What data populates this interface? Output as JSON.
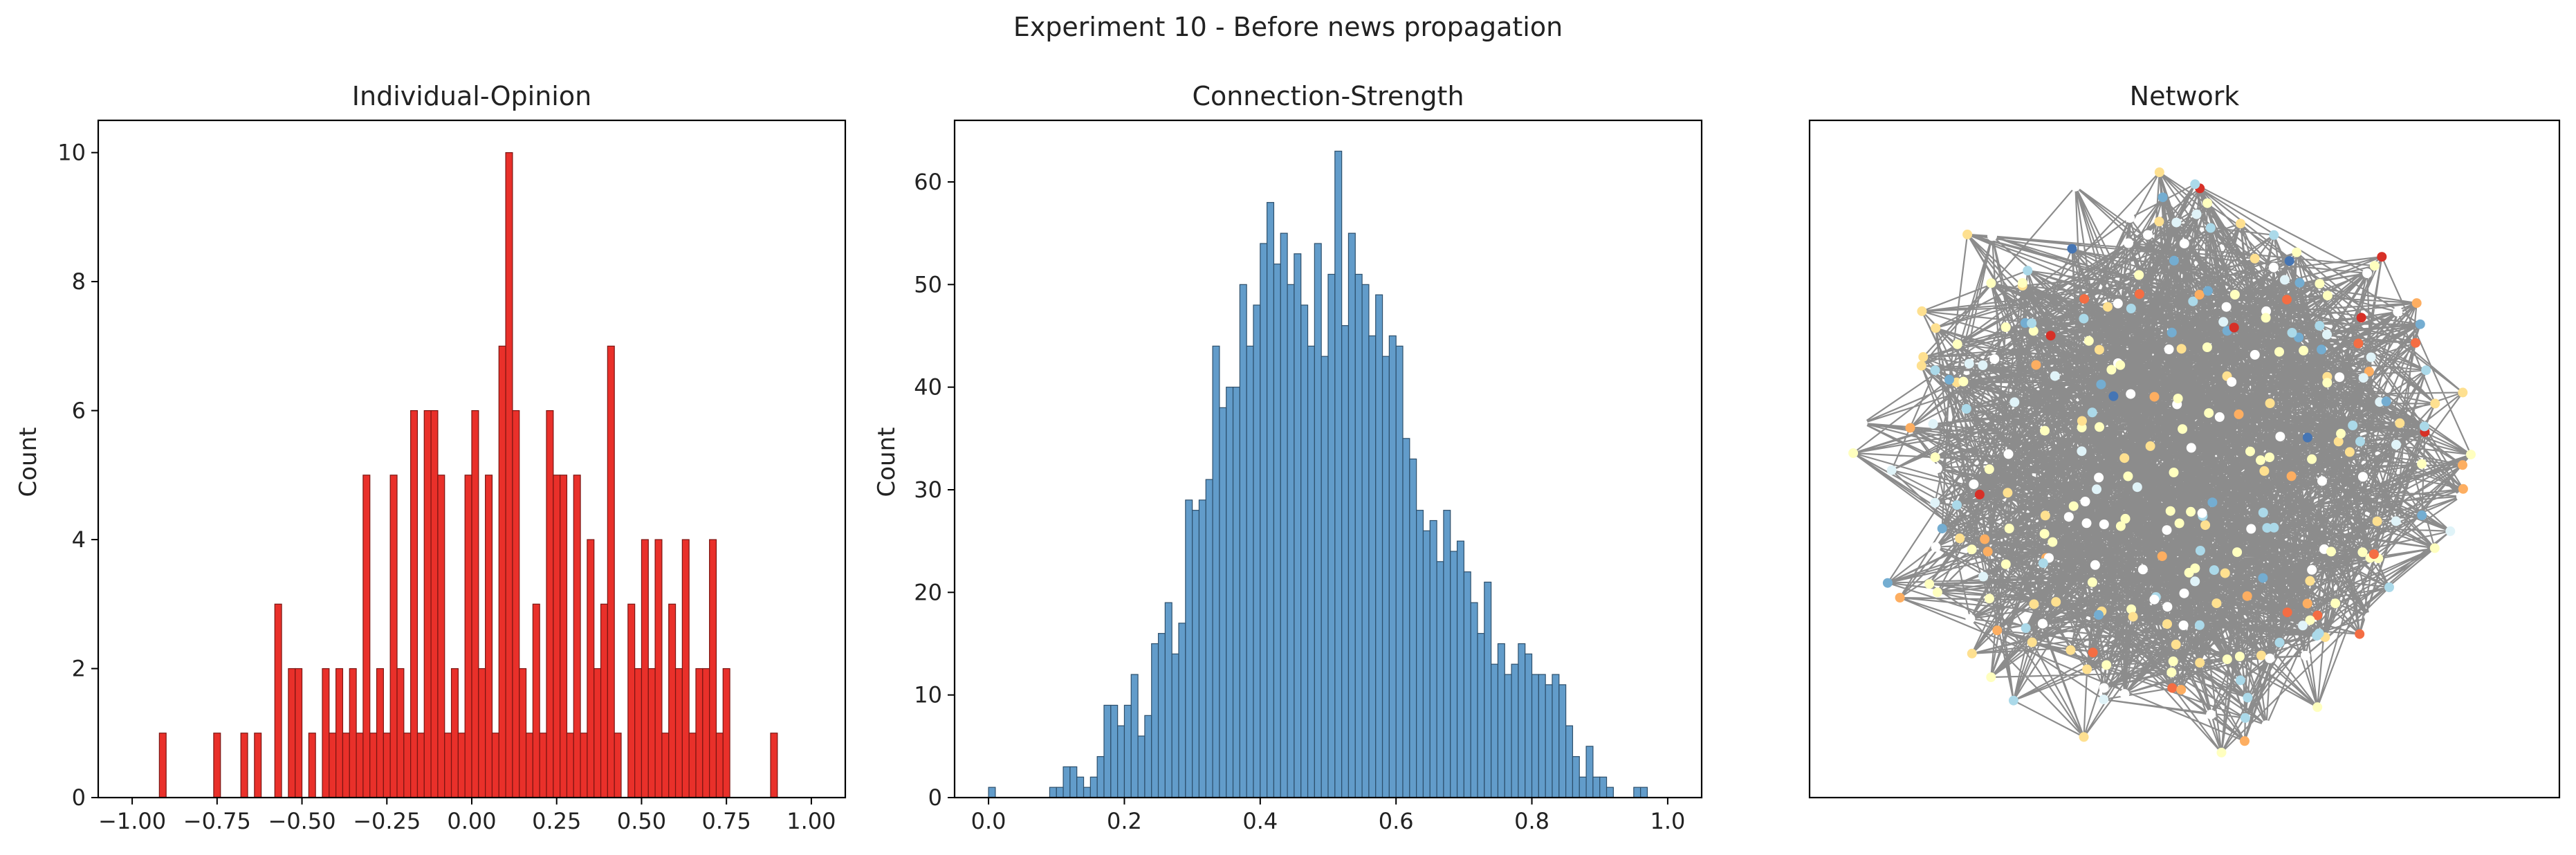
{
  "figure": {
    "suptitle": "Experiment 10 - Before news propagation"
  },
  "chart_data": [
    {
      "type": "bar",
      "title": "Individual-Opinion",
      "xlabel": "",
      "ylabel": "Count",
      "xlim": [
        -1.1,
        1.1
      ],
      "ylim": [
        0,
        10.5
      ],
      "xticks": [
        -1.0,
        -0.75,
        -0.5,
        -0.25,
        0.0,
        0.25,
        0.5,
        0.75,
        1.0
      ],
      "xtick_labels": [
        "−1.00",
        "−0.75",
        "−0.50",
        "−0.25",
        "0.00",
        "0.25",
        "0.50",
        "0.75",
        "1.00"
      ],
      "yticks": [
        0,
        2,
        4,
        6,
        8,
        10
      ],
      "ytick_labels": [
        "0",
        "2",
        "4",
        "6",
        "8",
        "10"
      ],
      "bin_start": -1.0,
      "bin_width": 0.02,
      "values": [
        0,
        0,
        0,
        0,
        1,
        0,
        0,
        0,
        0,
        0,
        0,
        0,
        1,
        0,
        0,
        0,
        1,
        0,
        1,
        0,
        0,
        3,
        0,
        2,
        2,
        0,
        1,
        0,
        2,
        1,
        2,
        1,
        2,
        1,
        5,
        1,
        2,
        1,
        5,
        2,
        1,
        6,
        1,
        6,
        6,
        5,
        1,
        2,
        1,
        5,
        6,
        2,
        5,
        1,
        7,
        10,
        6,
        2,
        1,
        3,
        1,
        6,
        5,
        5,
        1,
        5,
        1,
        4,
        2,
        3,
        7,
        1,
        0,
        3,
        2,
        4,
        2,
        4,
        1,
        3,
        2,
        4,
        1,
        2,
        2,
        4,
        1,
        2,
        0,
        0,
        0,
        0,
        0,
        0,
        1,
        0,
        0,
        0,
        0,
        0
      ],
      "bar_color": "#e8251f",
      "edge_color": "#7a1512",
      "grid": false
    },
    {
      "type": "bar",
      "title": "Connection-Strength",
      "xlabel": "",
      "ylabel": "Count",
      "xlim": [
        -0.05,
        1.05
      ],
      "ylim": [
        0,
        66
      ],
      "xticks": [
        0.0,
        0.2,
        0.4,
        0.6,
        0.8,
        1.0
      ],
      "xtick_labels": [
        "0.0",
        "0.2",
        "0.4",
        "0.6",
        "0.8",
        "1.0"
      ],
      "yticks": [
        0,
        10,
        20,
        30,
        40,
        50,
        60
      ],
      "ytick_labels": [
        "0",
        "10",
        "20",
        "30",
        "40",
        "50",
        "60"
      ],
      "bin_start": 0.0,
      "bin_width": 0.01,
      "values": [
        1,
        0,
        0,
        0,
        0,
        0,
        0,
        0,
        0,
        1,
        1,
        3,
        3,
        2,
        1,
        2,
        4,
        9,
        9,
        7,
        9,
        12,
        6,
        8,
        15,
        16,
        19,
        14,
        17,
        29,
        28,
        29,
        31,
        44,
        38,
        40,
        40,
        50,
        44,
        48,
        54,
        58,
        52,
        55,
        50,
        53,
        48,
        44,
        54,
        43,
        51,
        63,
        46,
        55,
        51,
        50,
        45,
        49,
        43,
        45,
        44,
        35,
        33,
        28,
        26,
        27,
        23,
        28,
        24,
        25,
        22,
        19,
        16,
        21,
        13,
        15,
        12,
        13,
        15,
        14,
        12,
        12,
        11,
        12,
        11,
        7,
        4,
        2,
        5,
        2,
        2,
        1,
        0,
        0,
        0,
        1,
        1,
        0,
        0,
        0
      ],
      "bar_color": "#5a97c7",
      "edge_color": "#2d4f6b",
      "grid": false
    }
  ],
  "network": {
    "title": "Network",
    "edge_color": "#7f7f7f",
    "node_palette": [
      "#ffffff",
      "#ffffbf",
      "#fee090",
      "#e0f3f8",
      "#abd9e9",
      "#fdae61",
      "#74add1",
      "#f46d43",
      "#d73027",
      "#4575b4",
      "#313695"
    ],
    "node_count": 300
  }
}
